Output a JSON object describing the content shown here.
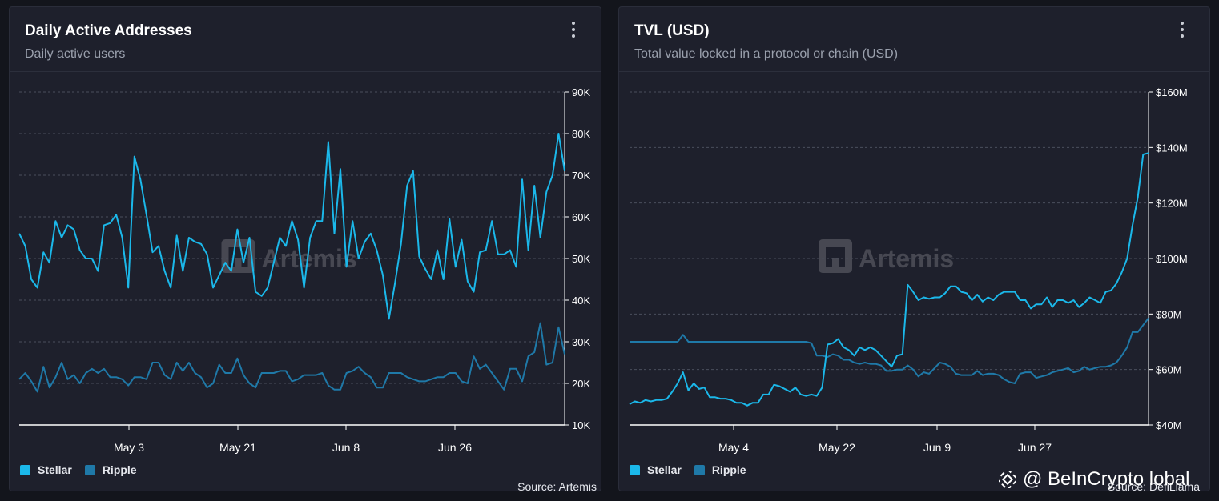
{
  "colors": {
    "stellar": "#1bb8ea",
    "ripple": "#1f79a8",
    "panel_bg": "#1e202c",
    "grid": "#4a4e5c"
  },
  "icons": {
    "menu": "kebab-menu-icon",
    "watermark": "artemis-logo-icon",
    "brand": "beincrypto-logo-icon"
  },
  "watermark_text": "Artemis",
  "brand_text": "@ BeInCrypto  lobal",
  "charts": [
    {
      "title": "Daily Active Addresses",
      "subtitle": "Daily active users",
      "source": "Source: Artemis",
      "legend": [
        "Stellar",
        "Ripple"
      ],
      "chart_data": {
        "type": "line",
        "title": "Daily Active Addresses",
        "ylim": [
          10000,
          90000
        ],
        "y_ticks": [
          "90K",
          "80K",
          "70K",
          "60K",
          "50K",
          "40K",
          "30K",
          "20K",
          "10K"
        ],
        "x_ticks": [
          "May 3",
          "May 21",
          "Jun 8",
          "Jun 26"
        ],
        "grid": true,
        "legend_position": "bottom-left",
        "series": [
          {
            "name": "Stellar",
            "values": [
              56000,
              53000,
              45000,
              43000,
              51500,
              49000,
              59000,
              55000,
              58000,
              57000,
              52000,
              50000,
              50000,
              47000,
              58000,
              58500,
              60500,
              55000,
              43000,
              74500,
              69000,
              60500,
              51500,
              53000,
              47000,
              43000,
              55500,
              47000,
              55000,
              54000,
              53500,
              51000,
              43000,
              46000,
              49000,
              47000,
              57000,
              49000,
              55000,
              42000,
              41000,
              43000,
              49000,
              55000,
              53000,
              59000,
              54500,
              43000,
              55000,
              59000,
              59000,
              78000,
              56000,
              71500,
              48000,
              59000,
              50000,
              54000,
              56000,
              52000,
              46000,
              35500,
              44000,
              53500,
              67500,
              71000,
              50500,
              47500,
              45000,
              52000,
              45000,
              59500,
              48000,
              54500,
              44500,
              42000,
              51500,
              52000,
              59000,
              51000,
              51000,
              52000,
              48000,
              69000,
              52000,
              67500,
              55000,
              66000,
              70000,
              80000,
              71000
            ]
          },
          {
            "name": "Ripple",
            "values": [
              21000,
              22500,
              20500,
              18000,
              24000,
              19000,
              21500,
              25000,
              21000,
              22000,
              20000,
              22500,
              23500,
              22500,
              23500,
              21500,
              21500,
              21000,
              19500,
              21500,
              21500,
              21000,
              25000,
              25000,
              22000,
              21000,
              25000,
              23000,
              25000,
              22500,
              21500,
              19000,
              20000,
              24500,
              22500,
              22500,
              26000,
              22000,
              20000,
              19000,
              22500,
              22500,
              22500,
              23000,
              23000,
              20500,
              21000,
              22000,
              22000,
              22000,
              22500,
              19500,
              18500,
              18500,
              22500,
              23000,
              24000,
              22500,
              21500,
              19000,
              19000,
              22500,
              22500,
              22500,
              21500,
              21000,
              20500,
              20500,
              21000,
              21500,
              21500,
              22500,
              22500,
              20500,
              20000,
              26500,
              23500,
              24500,
              22500,
              20500,
              18500,
              23500,
              23500,
              20500,
              26500,
              27500,
              34500,
              24500,
              25000,
              33500,
              27000
            ]
          }
        ]
      }
    },
    {
      "title": "TVL (USD)",
      "subtitle": "Total value locked in a protocol or chain (USD)",
      "source": "Source: DefiLlama",
      "legend": [
        "Stellar",
        "Ripple"
      ],
      "chart_data": {
        "type": "line",
        "title": "TVL (USD)",
        "ylim": [
          40000000,
          160000000
        ],
        "y_ticks": [
          "$160M",
          "$140M",
          "$120M",
          "$100M",
          "$80M",
          "$60M",
          "$40M"
        ],
        "x_ticks": [
          "May 4",
          "May 22",
          "Jun 9",
          "Jun 27"
        ],
        "grid": true,
        "legend_position": "bottom-left",
        "series": [
          {
            "name": "Stellar",
            "values": [
              47500000,
              48500000,
              48000000,
              49000000,
              48500000,
              49000000,
              49000000,
              49500000,
              52000000,
              55000000,
              59000000,
              52500000,
              55000000,
              53000000,
              53500000,
              50000000,
              50000000,
              49500000,
              49500000,
              49000000,
              48000000,
              48000000,
              47000000,
              48000000,
              48000000,
              51000000,
              51000000,
              54500000,
              54000000,
              53000000,
              52000000,
              53500000,
              51000000,
              50500000,
              51000000,
              50500000,
              53500000,
              69000000,
              69500000,
              71000000,
              68000000,
              67000000,
              65000000,
              68000000,
              67000000,
              68000000,
              67000000,
              65000000,
              63000000,
              61000000,
              65000000,
              65500000,
              90500000,
              88000000,
              85000000,
              86000000,
              85500000,
              86000000,
              86000000,
              87500000,
              90000000,
              90000000,
              88000000,
              87500000,
              85000000,
              87000000,
              84500000,
              86000000,
              85000000,
              87000000,
              88000000,
              88000000,
              88000000,
              85000000,
              85000000,
              82000000,
              83500000,
              83500000,
              86000000,
              82500000,
              85000000,
              85000000,
              84000000,
              85000000,
              82500000,
              84000000,
              86000000,
              85000000,
              84000000,
              88000000,
              88500000,
              91000000,
              95000000,
              100000000,
              112000000,
              122000000,
              137500000,
              138000000
            ]
          },
          {
            "name": "Ripple",
            "values": [
              70000000,
              70000000,
              70000000,
              70000000,
              70000000,
              70000000,
              70000000,
              70000000,
              70000000,
              70000000,
              72500000,
              70000000,
              70000000,
              70000000,
              70000000,
              70000000,
              70000000,
              70000000,
              70000000,
              70000000,
              70000000,
              70000000,
              70000000,
              70000000,
              70000000,
              70000000,
              70000000,
              70000000,
              70000000,
              70000000,
              70000000,
              70000000,
              70000000,
              70000000,
              69500000,
              65000000,
              65000000,
              64500000,
              65500000,
              65000000,
              63500000,
              63500000,
              62500000,
              62000000,
              62500000,
              62000000,
              62000000,
              61500000,
              59500000,
              59500000,
              60000000,
              60000000,
              61500000,
              60000000,
              57500000,
              59000000,
              58500000,
              60500000,
              62500000,
              62000000,
              61000000,
              58500000,
              58000000,
              58000000,
              58000000,
              59500000,
              58000000,
              58500000,
              58500000,
              58000000,
              56500000,
              55500000,
              55000000,
              58500000,
              59000000,
              59000000,
              57000000,
              57500000,
              58000000,
              59000000,
              59500000,
              60000000,
              60500000,
              59000000,
              59500000,
              61000000,
              60000000,
              60500000,
              61000000,
              61000000,
              61500000,
              62500000,
              65000000,
              68000000,
              73500000,
              73500000,
              76000000,
              78500000
            ]
          }
        ]
      }
    }
  ]
}
